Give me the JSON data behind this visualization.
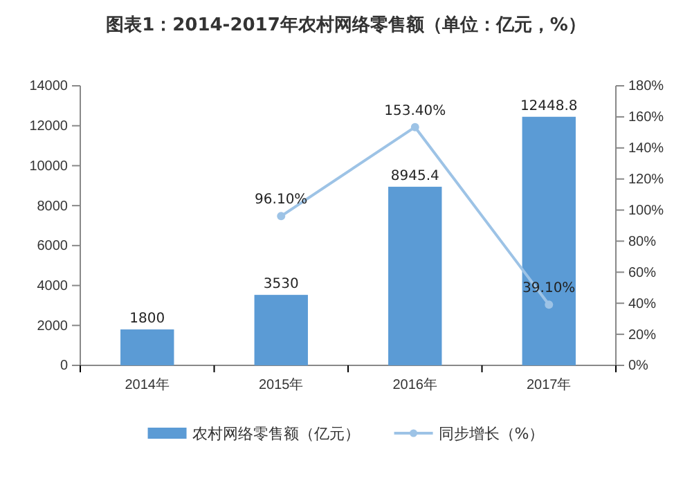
{
  "chart_data": {
    "type": "bar",
    "title": "图表1：2014-2017年农村网络零售额（单位：亿元，%）",
    "categories": [
      "2014年",
      "2015年",
      "2016年",
      "2017年"
    ],
    "series": [
      {
        "name": "农村网络零售额（亿元）",
        "color": "#5b9bd5",
        "values": [
          1800,
          3530,
          8945.4,
          12448.8
        ],
        "value_labels": [
          "1800",
          "3530",
          "8945.4",
          "12448.8"
        ]
      },
      {
        "name": "同步增长（%）",
        "type": "line",
        "axis": "y2",
        "color": "#9dc3e6",
        "marker": "circle",
        "values": [
          null,
          96.1,
          153.4,
          39.1
        ],
        "value_labels": [
          null,
          "96.10%",
          "153.40%",
          "39.10%"
        ]
      }
    ],
    "ylim": [
      0,
      14000
    ],
    "yticks": [
      0,
      2000,
      4000,
      6000,
      8000,
      10000,
      12000,
      14000
    ],
    "y2lim": [
      0,
      180
    ],
    "y2ticks": [
      {
        "value": 0,
        "label": "0%"
      },
      {
        "value": 20,
        "label": "20%"
      },
      {
        "value": 40,
        "label": "40%"
      },
      {
        "value": 60,
        "label": "60%"
      },
      {
        "value": 80,
        "label": "80%"
      },
      {
        "value": 100,
        "label": "100%"
      },
      {
        "value": 120,
        "label": "120%"
      },
      {
        "value": 140,
        "label": "140%"
      },
      {
        "value": 160,
        "label": "160%"
      },
      {
        "value": 180,
        "label": "180%"
      }
    ],
    "legend": "bottom"
  }
}
